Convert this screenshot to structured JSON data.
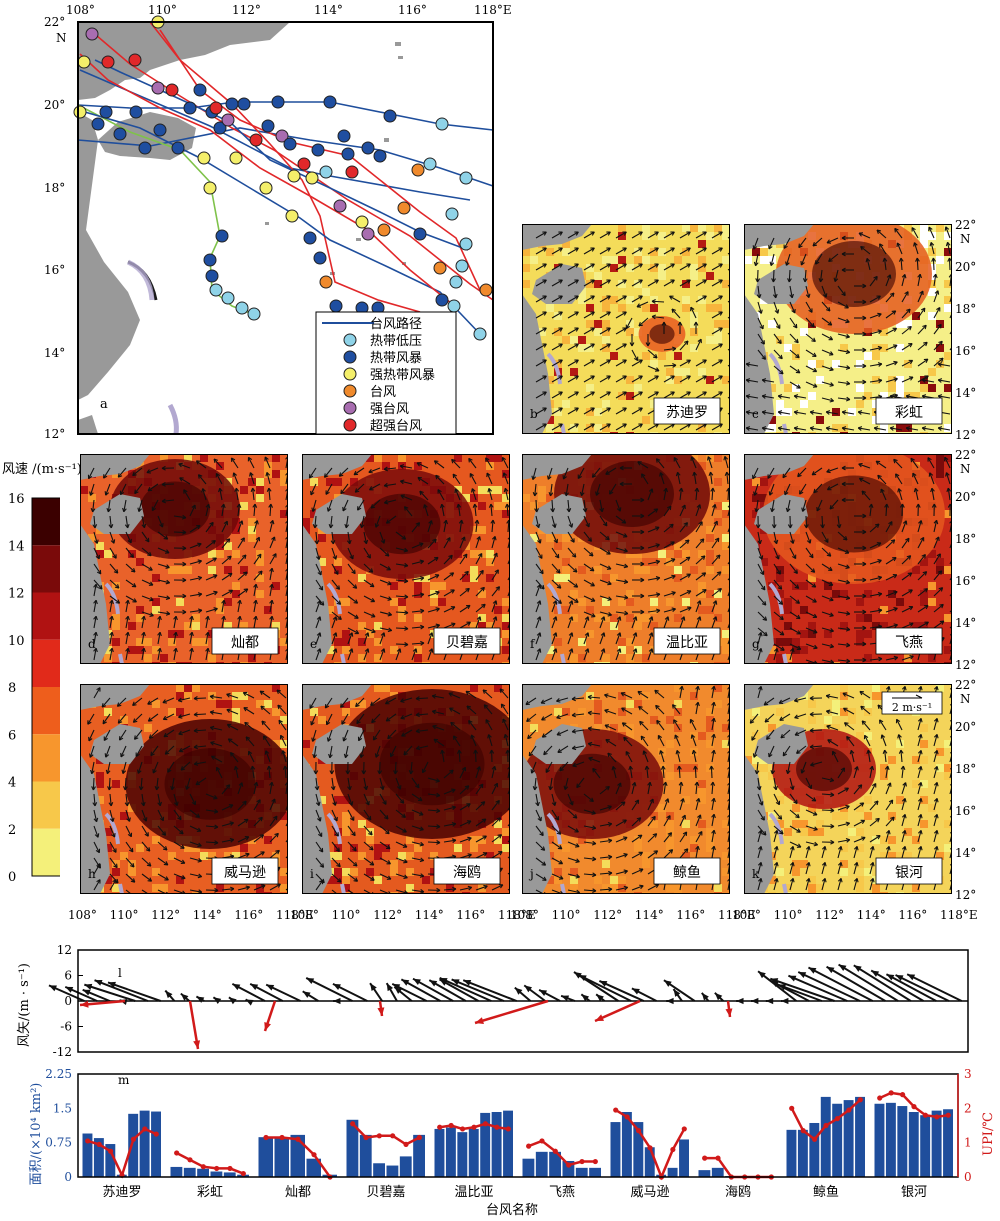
{
  "map_track": {
    "panel_letter": "a",
    "lon_ticks": [
      "108°",
      "110°",
      "112°",
      "114°",
      "116°",
      "118°E"
    ],
    "lat_ticks": [
      "22°",
      "20°",
      "18°",
      "16°",
      "14°",
      "12°"
    ],
    "lat_unit": "N",
    "legend": [
      {
        "label": "台风路径",
        "kind": "line",
        "color": "#1f4e9c"
      },
      {
        "label": "热带低压",
        "kind": "dot",
        "color": "#8fd3e8"
      },
      {
        "label": "热带风暴",
        "kind": "dot",
        "color": "#1f4ea0"
      },
      {
        "label": "强热带风暴",
        "kind": "dot",
        "color": "#f4ef6a"
      },
      {
        "label": "台风",
        "kind": "dot",
        "color": "#f08a2c"
      },
      {
        "label": "强台风",
        "kind": "dot",
        "color": "#a86db0"
      },
      {
        "label": "超强台风",
        "kind": "dot",
        "color": "#e1282a"
      }
    ]
  },
  "colorbar": {
    "title": "风速 /(m·s⁻¹)",
    "ticks": [
      "16",
      "14",
      "12",
      "10",
      "8",
      "6",
      "4",
      "2",
      "0"
    ],
    "colors": [
      "#3b0000",
      "#7a0a0a",
      "#b01212",
      "#e12a1a",
      "#ee5e1c",
      "#f7962d",
      "#f7c84a",
      "#f4f07a",
      "#ffffff"
    ]
  },
  "wind_panels": [
    {
      "id": "b",
      "name": "苏迪罗",
      "bg": "#f4dc5a"
    },
    {
      "id": "c",
      "name": "彩虹",
      "bg": "#f5ef88"
    },
    {
      "id": "d",
      "name": "灿都",
      "bg": "#e9622a"
    },
    {
      "id": "e",
      "name": "贝碧嘉",
      "bg": "#e5581f"
    },
    {
      "id": "f",
      "name": "温比亚",
      "bg": "#ee7e2a"
    },
    {
      "id": "g",
      "name": "飞燕",
      "bg": "#c92a18"
    },
    {
      "id": "h",
      "name": "威马逊",
      "bg": "#e85f22"
    },
    {
      "id": "i",
      "name": "海鸥",
      "bg": "#e45a1f"
    },
    {
      "id": "j",
      "name": "鲸鱼",
      "bg": "#f18a2d"
    },
    {
      "id": "k",
      "name": "银河",
      "bg": "#f4d45a"
    }
  ],
  "panel_lat_ticks": [
    "22°",
    "20°",
    "18°",
    "16°",
    "14°",
    "12°"
  ],
  "panel_lon_ticks": [
    "108°",
    "110°",
    "112°",
    "114°",
    "116°",
    "118°E"
  ],
  "scale_arrow_label": "2 m·s⁻¹",
  "chart_data": [
    {
      "type": "quiver",
      "panel_letter": "l",
      "ylabel": "风矢/(m · s⁻¹)",
      "ylim": [
        -12,
        12
      ],
      "yticks": [
        "12",
        "6",
        "0",
        "-6",
        "-12"
      ],
      "series": [
        {
          "name": "black",
          "color": "#111111"
        },
        {
          "name": "red",
          "color": "#d11a1a"
        }
      ]
    },
    {
      "type": "bar+line",
      "panel_letter": "m",
      "xlabel": "台风名称",
      "ylabel_left": "面积/(×10⁴ km²)",
      "ylabel_right": "UPI/℃",
      "ylim_left": [
        0,
        2.25
      ],
      "ylim_right": [
        0,
        3
      ],
      "yticks_left": [
        "2.25",
        "1.5",
        "0.75",
        "0"
      ],
      "yticks_right": [
        "3",
        "2",
        "1",
        "0"
      ],
      "categories": [
        "苏迪罗",
        "彩虹",
        "灿都",
        "贝碧嘉",
        "温比亚",
        "飞燕",
        "威马逊",
        "海鸥",
        "鲸鱼",
        "银河"
      ],
      "area": [
        [
          0.95,
          0.85,
          0.72,
          0.05,
          1.38,
          1.45,
          1.43
        ],
        [
          0.22,
          0.2,
          0.18,
          0.12,
          0.1,
          0.05
        ],
        [
          0.87,
          0.87,
          0.92,
          0.4,
          0.05
        ],
        [
          1.25,
          0.92,
          0.3,
          0.25,
          0.45,
          0.92
        ],
        [
          1.05,
          1.08,
          0.98,
          1.05,
          1.4,
          1.42,
          1.45
        ],
        [
          0.4,
          0.55,
          0.55,
          0.35,
          0.2,
          0.2
        ],
        [
          1.2,
          1.42,
          1.2,
          0.65,
          0.05,
          0.2,
          0.82
        ],
        [
          0.15,
          0.2,
          0.02,
          0.02,
          0.02,
          0.01
        ],
        [
          1.03,
          1.03,
          1.18,
          1.75,
          1.6,
          1.68,
          1.75
        ],
        [
          1.6,
          1.62,
          1.55,
          1.42,
          1.35,
          1.45,
          1.48
        ]
      ],
      "upi": [
        [
          1.05,
          0.95,
          0.75,
          0.05,
          1.1,
          1.4,
          1.25
        ],
        [
          0.7,
          0.5,
          0.3,
          0.25,
          0.25,
          0.1
        ],
        [
          1.15,
          1.15,
          1.1,
          0.65,
          0.0
        ],
        [
          1.55,
          1.15,
          1.2,
          1.2,
          0.95,
          1.15
        ],
        [
          1.45,
          1.5,
          1.4,
          1.45,
          1.55,
          1.45,
          1.4
        ],
        [
          0.9,
          1.05,
          0.75,
          0.35,
          0.45,
          0.45
        ],
        [
          1.95,
          1.75,
          1.35,
          0.85,
          0.0,
          0.8,
          1.4
        ],
        [
          0.55,
          0.55,
          0.0,
          0.0,
          0.0,
          0.0
        ],
        [
          2.0,
          1.35,
          1.1,
          1.5,
          1.7,
          1.95,
          2.25
        ],
        [
          2.3,
          2.45,
          2.4,
          2.05,
          1.8,
          1.75,
          1.8
        ]
      ]
    }
  ]
}
